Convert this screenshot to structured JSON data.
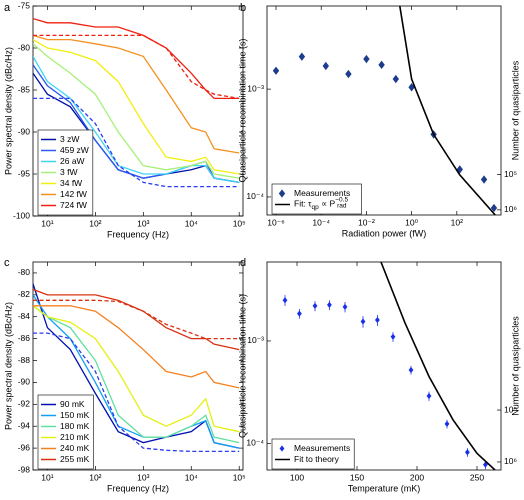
{
  "chart_data": [
    {
      "type": "line",
      "panel_label": "a",
      "xlabel": "Frequency (Hz)",
      "ylabel": "Power spectral density (dBc/Hz)",
      "xlog": true,
      "xlim": [
        5,
        120000
      ],
      "ylim": [
        -100,
        -75
      ],
      "xticks": [
        {
          "value": 10,
          "label": "10¹"
        },
        {
          "value": 100,
          "label": "10²"
        },
        {
          "value": 1000,
          "label": "10³"
        },
        {
          "value": 10000,
          "label": "10⁴"
        },
        {
          "value": 100000,
          "label": "10⁵"
        }
      ],
      "yticks": [
        -100,
        -95,
        -90,
        -85,
        -80,
        -75
      ],
      "legend": "lower left",
      "x": [
        5,
        10,
        30,
        100,
        300,
        1000,
        3000,
        10000,
        20000,
        30000,
        100000
      ],
      "series": [
        {
          "name": "3 zW",
          "color": "#0010a8",
          "values": [
            -83,
            -85.5,
            -87,
            -91,
            -94.5,
            -95.5,
            -95,
            -94.5,
            -94,
            -95.5,
            -96
          ]
        },
        {
          "name": "459 zW",
          "color": "#2a5cf0",
          "values": [
            -82,
            -84.5,
            -86.5,
            -91,
            -94.5,
            -95.5,
            -95,
            -94,
            -93.5,
            -95.5,
            -96
          ]
        },
        {
          "name": "26 aW",
          "color": "#40d4f4",
          "values": [
            -81,
            -84,
            -86,
            -90,
            -94,
            -95,
            -95,
            -94,
            -94,
            -95.5,
            -96
          ]
        },
        {
          "name": "3 fW",
          "color": "#a6f07a",
          "values": [
            -79.5,
            -81,
            -83,
            -85.5,
            -90,
            -94,
            -94.5,
            -94,
            -93.5,
            -95,
            -95.5
          ]
        },
        {
          "name": "34 fW",
          "color": "#f2ee10",
          "values": [
            -79,
            -80,
            -80.5,
            -81.5,
            -84,
            -89,
            -93,
            -93.5,
            -93,
            -94.5,
            -95
          ]
        },
        {
          "name": "142 fW",
          "color": "#f49020",
          "values": [
            -78.5,
            -79,
            -79,
            -79.5,
            -80,
            -81,
            -85,
            -89.5,
            -90,
            -92,
            -92.5
          ]
        },
        {
          "name": "724 fW",
          "color": "#f02010",
          "values": [
            -76.5,
            -77,
            -77,
            -77.5,
            -77.5,
            -78.5,
            -80,
            -83,
            -85,
            -86,
            -86
          ]
        },
        {
          "color": "#2a3cf0",
          "dashed": true,
          "values": [
            -86,
            -86,
            -86,
            -89,
            -94,
            -96,
            -96.5,
            -96.5,
            -96.5,
            -96.5,
            -96.5
          ]
        },
        {
          "color": "#f02010",
          "dashed": true,
          "values": [
            -78.5,
            -78.5,
            -78.5,
            -78.5,
            -78.5,
            -78.5,
            -80,
            -84,
            -85,
            -85.5,
            -86
          ]
        }
      ]
    },
    {
      "type": "scatter",
      "panel_label": "b",
      "xlabel": "Radiation power (fW)",
      "ylabel": "Quasiparticle recombination time (s)",
      "y2label": "Number of quasiparticles",
      "xlog": true,
      "ylog": true,
      "y2log": true,
      "xlim": [
        4e-07,
        9000
      ],
      "ylim": [
        6.8e-05,
        0.0059
      ],
      "y2lim": [
        1400000,
        1.7
      ],
      "xticks": [
        {
          "value": 1e-06,
          "label": "10⁻⁶"
        },
        {
          "value": 0.0001,
          "label": "10⁻⁴"
        },
        {
          "value": 0.01,
          "label": "10⁻²"
        },
        {
          "value": 1,
          "label": "10⁰"
        },
        {
          "value": 100,
          "label": "10²"
        }
      ],
      "yticks": [
        {
          "value": 0.0001,
          "label": "10⁻⁴"
        },
        {
          "value": 0.001,
          "label": "10⁻³"
        }
      ],
      "y2ticks": [
        {
          "value": 100000,
          "label": "10⁵"
        },
        {
          "value": 1000000,
          "label": "10⁶"
        }
      ],
      "legend": "lower left",
      "series": [
        {
          "name": "Measurements",
          "color": "#1c3c8c",
          "marker": "diamond",
          "x": [
            1e-06,
            1.4e-05,
            0.00016,
            0.0016,
            0.01,
            0.047,
            0.2,
            1,
            9.4,
            135,
            1600,
            4400
          ],
          "values": [
            0.00148,
            0.002,
            0.00164,
            0.00138,
            0.0019,
            0.00168,
            0.00124,
            0.00104,
            0.00038,
            0.00018,
            0.000145,
            7.9e-05
          ]
        },
        {
          "name_parts": [
            "Fit: τ",
            "qp",
            " ∝ P",
            "−0.5",
            "rad"
          ],
          "name_styles": [
            "",
            "sub",
            "",
            "sup",
            "sub"
          ],
          "color": "#000000",
          "x": [
            0.3,
            1,
            9.4,
            135,
            5000
          ],
          "values": [
            0.0059,
            0.00124,
            0.00038,
            0.00016,
            6.8e-05
          ]
        }
      ]
    },
    {
      "type": "line",
      "panel_label": "c",
      "xlabel": "Frequency (Hz)",
      "ylabel": "Power spectral density (dBc/Hz)",
      "xlog": true,
      "xlim": [
        5,
        120000
      ],
      "ylim": [
        -98,
        -79
      ],
      "xticks": [
        {
          "value": 10,
          "label": "10¹"
        },
        {
          "value": 100,
          "label": "10²"
        },
        {
          "value": 1000,
          "label": "10³"
        },
        {
          "value": 10000,
          "label": "10⁴"
        },
        {
          "value": 100000,
          "label": "10⁵"
        }
      ],
      "yticks": [
        -98,
        -96,
        -94,
        -92,
        -90,
        -88,
        -86,
        -84,
        -82,
        -80
      ],
      "legend": "lower left",
      "x": [
        5,
        10,
        30,
        100,
        300,
        1000,
        3000,
        10000,
        20000,
        30000,
        100000
      ],
      "series": [
        {
          "name": "90 mK",
          "color": "#0010b0",
          "values": [
            -81,
            -85,
            -87,
            -91,
            -94.5,
            -95.5,
            -95,
            -94.5,
            -93.5,
            -95.5,
            -96
          ]
        },
        {
          "name": "150 mK",
          "color": "#10a0f8",
          "values": [
            -82,
            -84,
            -86,
            -90,
            -94,
            -95,
            -95,
            -94,
            -93.5,
            -95.5,
            -96
          ]
        },
        {
          "name": "180 mK",
          "color": "#60e0a0",
          "values": [
            -83,
            -84,
            -85,
            -88,
            -93,
            -95,
            -95,
            -94,
            -93,
            -95,
            -95.5
          ]
        },
        {
          "name": "210 mK",
          "color": "#e4f010",
          "values": [
            -83,
            -84,
            -84.5,
            -86,
            -89,
            -93,
            -94,
            -93,
            -91.5,
            -94,
            -94.5
          ]
        },
        {
          "name": "240 mK",
          "color": "#f48020",
          "values": [
            -83,
            -83,
            -83,
            -83.5,
            -85,
            -87,
            -89,
            -89.5,
            -89,
            -90,
            -90.5
          ]
        },
        {
          "name": "255 mK",
          "color": "#d83010",
          "values": [
            -81.5,
            -82,
            -82,
            -82,
            -82.5,
            -83.5,
            -85,
            -86,
            -86,
            -86.5,
            -87
          ]
        },
        {
          "color": "#2a3cf0",
          "dashed": true,
          "values": [
            -85.5,
            -85.5,
            -86,
            -89,
            -94,
            -96,
            -96.2,
            -96.3,
            -96.3,
            -96.3,
            -96.3
          ]
        },
        {
          "color": "#d83010",
          "dashed": true,
          "values": [
            -82.5,
            -82.5,
            -82.5,
            -82.5,
            -82.6,
            -83.5,
            -84.7,
            -85.5,
            -86,
            -86,
            -86
          ]
        }
      ]
    },
    {
      "type": "scatter",
      "panel_label": "d",
      "xlabel": "Temperature (mK)",
      "ylabel": "Quasiparticle recombination time (s)",
      "y2label": "Number of quasiparticles",
      "ylog": true,
      "y2log": true,
      "xlim": [
        75,
        270
      ],
      "ylim": [
        5.5e-05,
        0.0059
      ],
      "y2lim": [
        1430000,
        140
      ],
      "xticks": [
        100,
        150,
        200,
        250
      ],
      "yticks": [
        {
          "value": 0.0001,
          "label": "10⁻⁴"
        },
        {
          "value": 0.001,
          "label": "10⁻³"
        }
      ],
      "y2ticks": [
        {
          "value": 100000,
          "label": "10⁵"
        },
        {
          "value": 1000000,
          "label": "10⁶"
        }
      ],
      "legend": "lower left",
      "series": [
        {
          "name": "Measurements",
          "color": "#1830e8",
          "marker": "diamond-small",
          "x": [
            90,
            102,
            115,
            127,
            140,
            155,
            167,
            180,
            195,
            210,
            225,
            242,
            257
          ],
          "values": [
            0.0025,
            0.00185,
            0.0022,
            0.00225,
            0.00215,
            0.00155,
            0.0016,
            0.0011,
            0.00052,
            0.00029,
            0.000155,
            8.2e-05,
            6.2e-05
          ],
          "errors": [
            0.0003,
            0.0002,
            0.00025,
            0.00025,
            0.00025,
            0.0002,
            0.0002,
            0.00012,
            5e-05,
            3e-05,
            1.5e-05,
            8e-06,
            6e-06
          ]
        },
        {
          "name": "Fit to theory",
          "color": "#000000",
          "x": [
            170,
            190,
            210,
            230,
            250,
            265
          ],
          "values": [
            0.0059,
            0.0015,
            0.00045,
            0.00017,
            8e-05,
            5.5e-05
          ]
        }
      ]
    }
  ]
}
